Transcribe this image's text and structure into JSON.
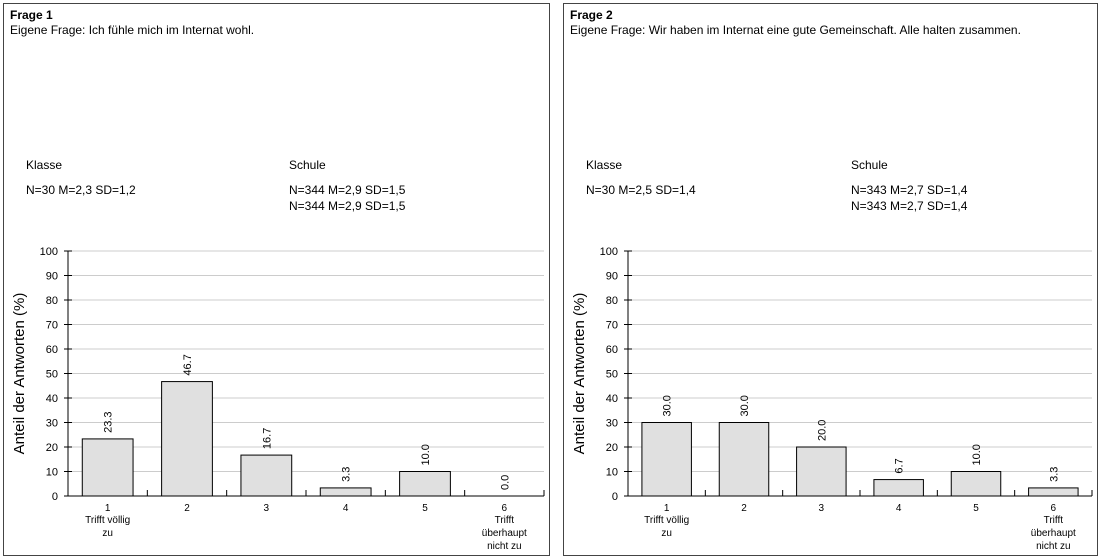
{
  "panels": [
    {
      "title": "Frage 1",
      "question": "Eigene Frage: Ich fühle mich im Internat wohl.",
      "klasse_label": "Klasse",
      "schule_label": "Schule",
      "klasse_stat": "N=30 M=2,3 SD=1,2",
      "schule_stats": [
        "N=344 M=2,9 SD=1,5",
        "N=344 M=2,9 SD=1,5"
      ]
    },
    {
      "title": "Frage 2",
      "question": "Eigene Frage: Wir haben im Internat eine gute Gemeinschaft. Alle halten zusammen.",
      "klasse_label": "Klasse",
      "schule_label": "Schule",
      "klasse_stat": "N=30 M=2,5 SD=1,4",
      "schule_stats": [
        "N=343 M=2,7 SD=1,4",
        "N=343 M=2,7 SD=1,4"
      ]
    }
  ],
  "chart_data": [
    {
      "type": "bar",
      "categories": [
        "1",
        "2",
        "3",
        "4",
        "5",
        "6"
      ],
      "category_sublabels": [
        [
          "Trifft völlig",
          "zu"
        ],
        [],
        [],
        [],
        [],
        [
          "Trifft",
          "überhaupt",
          "nicht zu"
        ]
      ],
      "values": [
        23.3,
        46.7,
        16.7,
        3.3,
        10.0,
        0.0
      ],
      "value_labels": [
        "23.3",
        "46.7",
        "16.7",
        "3.3",
        "10.0",
        "0.0"
      ],
      "ylabel": "Anteil der Antworten (%)",
      "ylim": [
        0,
        100
      ],
      "yticks": [
        "0",
        "10",
        "20",
        "30",
        "40",
        "50",
        "60",
        "70",
        "80",
        "90",
        "100"
      ],
      "grid": true,
      "bar_color": "#e0e0e0"
    },
    {
      "type": "bar",
      "categories": [
        "1",
        "2",
        "3",
        "4",
        "5",
        "6"
      ],
      "category_sublabels": [
        [
          "Trifft völlig",
          "zu"
        ],
        [],
        [],
        [],
        [],
        [
          "Trifft",
          "überhaupt",
          "nicht zu"
        ]
      ],
      "values": [
        30.0,
        30.0,
        20.0,
        6.7,
        10.0,
        3.3
      ],
      "value_labels": [
        "30.0",
        "30.0",
        "20.0",
        "6.7",
        "10.0",
        "3.3"
      ],
      "ylabel": "Anteil der Antworten (%)",
      "ylim": [
        0,
        100
      ],
      "yticks": [
        "0",
        "10",
        "20",
        "30",
        "40",
        "50",
        "60",
        "70",
        "80",
        "90",
        "100"
      ],
      "grid": true,
      "bar_color": "#e0e0e0"
    }
  ]
}
